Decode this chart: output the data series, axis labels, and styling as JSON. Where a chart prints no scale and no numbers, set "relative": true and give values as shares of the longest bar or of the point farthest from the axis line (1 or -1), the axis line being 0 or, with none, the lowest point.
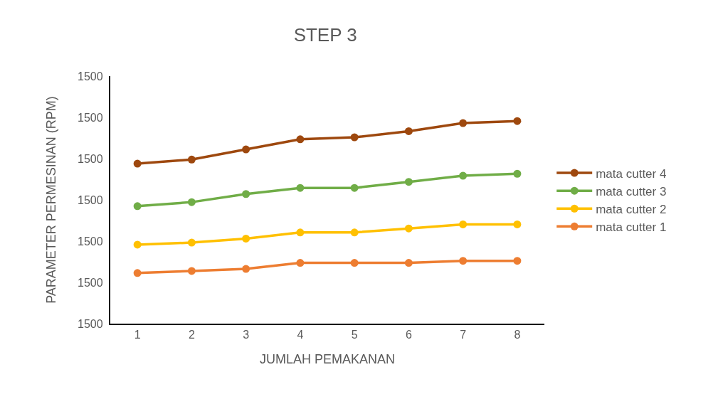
{
  "chart_data": {
    "type": "line",
    "title": "STEP 3",
    "xlabel": "JUMLAH PEMAKANAN",
    "ylabel": "PARAMETER PERMESINAN (RPM)",
    "x": [
      1,
      2,
      3,
      4,
      5,
      6,
      7,
      8
    ],
    "xlim": [
      0.5,
      8.5
    ],
    "xticks": [
      1,
      2,
      3,
      4,
      5,
      6,
      7,
      8
    ],
    "relative": true,
    "annotations": [
      "1500",
      "1500",
      "1500",
      "1500",
      "1500",
      "1500",
      "1500"
    ],
    "series": [
      {
        "name": "mata cutter 4",
        "color": "#9e480e",
        "values": [
          0.79,
          0.81,
          0.86,
          0.91,
          0.92,
          0.95,
          0.99,
          1
        ]
      },
      {
        "name": "mata cutter 3",
        "color": "#70ad47",
        "values": [
          0.58,
          0.6,
          0.64,
          0.67,
          0.67,
          0.7,
          0.73,
          0.74
        ]
      },
      {
        "name": "mata cutter 2",
        "color": "#ffc000",
        "values": [
          0.39,
          0.4,
          0.42,
          0.45,
          0.45,
          0.47,
          0.49,
          0.49
        ]
      },
      {
        "name": "mata cutter 1",
        "color": "#ed7d31",
        "values": [
          0.25,
          0.26,
          0.27,
          0.3,
          0.3,
          0.3,
          0.31,
          0.31
        ]
      }
    ],
    "grid": false,
    "legend": "right",
    "marker": "circle",
    "line_style": "solid"
  }
}
